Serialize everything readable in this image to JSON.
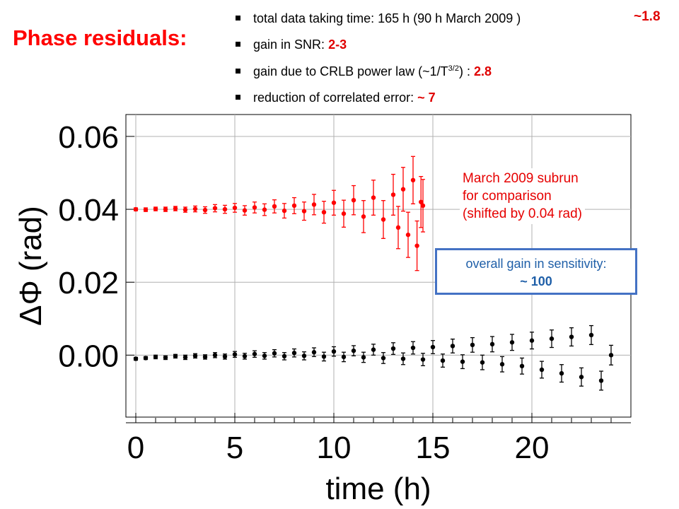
{
  "slide": {
    "title": "Phase residuals:",
    "bullets": [
      {
        "text": "total data taking time: 165 h  (90 h March 2009 )",
        "value": ""
      },
      {
        "text": "gain in SNR: ",
        "value": "2-3"
      },
      {
        "text": "gain due to CRLB power law (~1/T",
        "sup": "3/2",
        "tail": ") : ",
        "value": "2.8"
      },
      {
        "text": "reduction of correlated error: ",
        "value": "~ 7"
      }
    ],
    "ratio_note": "~1.8",
    "annotation_red": [
      "March 2009 subrun",
      "for comparison",
      "(shifted by 0.04 rad)"
    ],
    "gain_box": {
      "line1": "overall gain in sensitivity:",
      "line2": "~ 100"
    }
  },
  "colors": {
    "title": "#ff0000",
    "march_series": "#ff0000",
    "current_series": "#000000",
    "box_border": "#4472c4",
    "box_text": "#1f5fa8"
  },
  "chart_data": {
    "type": "scatter",
    "title": "",
    "xlabel": "time (h)",
    "ylabel": "ΔΦ (rad)",
    "xlim": [
      -0.5,
      25
    ],
    "ylim": [
      -0.017,
      0.066
    ],
    "xticks": [
      0,
      5,
      10,
      15,
      20
    ],
    "xtick_labels": [
      "0",
      "5",
      "10",
      "15",
      "20"
    ],
    "yticks": [
      0.0,
      0.02,
      0.04,
      0.06
    ],
    "ytick_labels": [
      "0.00",
      "0.02",
      "0.04",
      "0.06"
    ],
    "grid": true,
    "legend": "none",
    "series": [
      {
        "color": "#ff0000",
        "x": [
          0.0,
          0.5,
          1.0,
          1.5,
          2.0,
          2.5,
          3.0,
          3.5,
          4.0,
          4.5,
          5.0,
          5.5,
          6.0,
          6.5,
          7.0,
          7.5,
          8.0,
          8.5,
          9.0,
          9.5,
          10.0,
          10.5,
          11.0,
          11.5,
          12.0,
          12.5,
          13.0,
          13.25,
          13.5,
          13.75,
          14.0,
          14.2,
          14.4,
          14.5
        ],
        "y": [
          0.04,
          0.0399,
          0.0401,
          0.04,
          0.0402,
          0.0399,
          0.0401,
          0.0398,
          0.0403,
          0.04,
          0.0404,
          0.0397,
          0.0405,
          0.0399,
          0.0408,
          0.0396,
          0.041,
          0.0395,
          0.0413,
          0.0392,
          0.0418,
          0.0388,
          0.0425,
          0.038,
          0.0432,
          0.0372,
          0.044,
          0.035,
          0.0455,
          0.033,
          0.048,
          0.03,
          0.042,
          0.041
        ],
        "err": [
          0.0004,
          0.0005,
          0.0005,
          0.0006,
          0.0006,
          0.0007,
          0.0008,
          0.0009,
          0.001,
          0.0011,
          0.0012,
          0.0013,
          0.0015,
          0.0016,
          0.0018,
          0.002,
          0.0022,
          0.0025,
          0.0028,
          0.003,
          0.0034,
          0.0037,
          0.004,
          0.0044,
          0.0048,
          0.0052,
          0.0056,
          0.0058,
          0.006,
          0.0062,
          0.0065,
          0.0068,
          0.007,
          0.0072
        ]
      },
      {
        "color": "#000000",
        "x": [
          0.0,
          0.5,
          1.0,
          1.5,
          2.0,
          2.5,
          3.0,
          3.5,
          4.0,
          4.5,
          5.0,
          5.5,
          6.0,
          6.5,
          7.0,
          7.5,
          8.0,
          8.5,
          9.0,
          9.5,
          10.0,
          10.5,
          11.0,
          11.5,
          12.0,
          12.5,
          13.0,
          13.5,
          14.0,
          14.5,
          15.0,
          15.5,
          16.0,
          16.5,
          17.0,
          17.5,
          18.0,
          18.5,
          19.0,
          19.5,
          20.0,
          20.5,
          21.0,
          21.5,
          22.0,
          22.5,
          23.0,
          23.5,
          24.0
        ],
        "y": [
          -0.001,
          -0.0008,
          -0.0005,
          -0.0007,
          -0.0003,
          -0.0006,
          -0.0002,
          -0.0005,
          0.0,
          -0.0004,
          0.0002,
          -0.0003,
          0.0003,
          -0.0002,
          0.0005,
          -0.0003,
          0.0006,
          -0.0002,
          0.0008,
          -0.0004,
          0.001,
          -0.0005,
          0.0012,
          -0.0006,
          0.0015,
          -0.0008,
          0.0018,
          -0.001,
          0.002,
          -0.0012,
          0.0022,
          -0.0015,
          0.0025,
          -0.0018,
          0.0028,
          -0.002,
          0.003,
          -0.0025,
          0.0035,
          -0.003,
          0.004,
          -0.004,
          0.0045,
          -0.005,
          0.005,
          -0.006,
          0.0055,
          -0.007,
          0.0
        ],
        "err": [
          0.0004,
          0.0004,
          0.0005,
          0.0005,
          0.0005,
          0.0006,
          0.0006,
          0.0006,
          0.0007,
          0.0007,
          0.0008,
          0.0008,
          0.0009,
          0.0009,
          0.001,
          0.001,
          0.0011,
          0.0011,
          0.0012,
          0.0012,
          0.0013,
          0.0013,
          0.0014,
          0.0014,
          0.0015,
          0.0015,
          0.0016,
          0.0016,
          0.0017,
          0.0017,
          0.0018,
          0.0018,
          0.0019,
          0.0019,
          0.002,
          0.002,
          0.0021,
          0.0021,
          0.0022,
          0.0022,
          0.0023,
          0.0023,
          0.0024,
          0.0024,
          0.0025,
          0.0025,
          0.0026,
          0.0026,
          0.0027
        ]
      }
    ]
  }
}
